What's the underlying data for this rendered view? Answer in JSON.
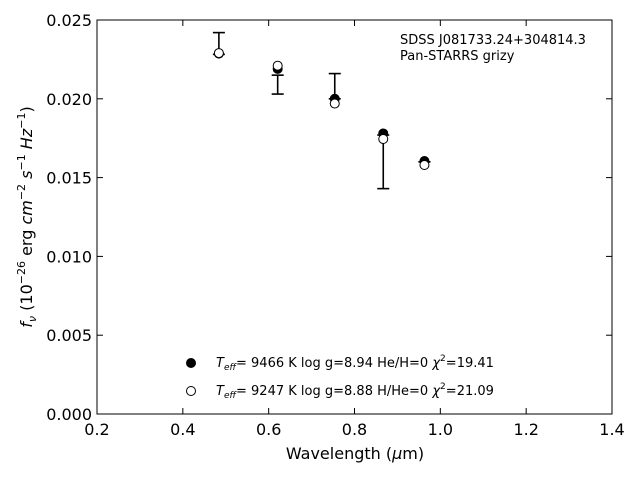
{
  "chart_data": {
    "type": "scatter",
    "xlabel": "Wavelength (μm)",
    "ylabel": "fν (10⁻²⁶ erg cm⁻² s⁻¹ Hz⁻¹)",
    "xlim": [
      0.2,
      1.4
    ],
    "ylim": [
      0.0,
      0.025
    ],
    "xticks": [
      "0.2",
      "0.4",
      "0.6",
      "0.8",
      "1.0",
      "1.2",
      "1.4"
    ],
    "yticks": [
      "0.000",
      "0.005",
      "0.010",
      "0.015",
      "0.020",
      "0.025"
    ],
    "annotation": [
      "SDSS J081733.24+304814.3",
      "Pan-STARRS grizy"
    ],
    "grid": false,
    "legend_position": "bottom-center",
    "observed": {
      "x": [
        0.484,
        0.621,
        0.754,
        0.867,
        0.963
      ],
      "y": [
        0.02282,
        0.0219,
        0.02,
        0.0177,
        0.016
      ],
      "y_low": [
        0.02282,
        0.0203,
        0.02,
        0.0143,
        0.016
      ],
      "y_high": [
        0.0242,
        0.0215,
        0.0216,
        0.0177,
        0.016
      ]
    },
    "series": [
      {
        "name": "Teff= 9466 K log g=8.94 He/H=0 χ²=19.41",
        "marker": "filled-circle",
        "x": [
          0.484,
          0.621,
          0.754,
          0.867,
          0.963
        ],
        "y": [
          0.02287,
          0.0219,
          0.02,
          0.0178,
          0.01605
        ]
      },
      {
        "name": "Teff= 9247 K log g=8.88 H/He=0 χ²=21.09",
        "marker": "open-circle",
        "x": [
          0.484,
          0.621,
          0.754,
          0.867,
          0.963
        ],
        "y": [
          0.0229,
          0.0221,
          0.0197,
          0.01745,
          0.0158
        ]
      }
    ],
    "legend": [
      {
        "marker": "filled-circle",
        "parts": {
          "teff": "9466 K",
          "logg": "log g=8.94",
          "comp": "He/H=0",
          "chi": "19.41"
        }
      },
      {
        "marker": "open-circle",
        "parts": {
          "teff": "9247 K",
          "logg": "log g=8.88",
          "comp": "H/He=0",
          "chi": "21.09"
        }
      }
    ]
  }
}
